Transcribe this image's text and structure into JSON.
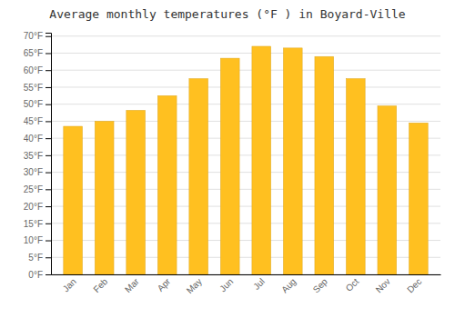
{
  "chart_data": {
    "type": "bar",
    "title": "Average monthly temperatures (°F ) in Boyard-Ville",
    "categories": [
      "Jan",
      "Feb",
      "Mar",
      "Apr",
      "May",
      "Jun",
      "Jul",
      "Aug",
      "Sep",
      "Oct",
      "Nov",
      "Dec"
    ],
    "values": [
      43.5,
      45.0,
      48.2,
      52.5,
      57.5,
      63.5,
      67.0,
      66.5,
      64.0,
      57.5,
      49.5,
      44.5
    ],
    "color": "#FFC020",
    "ylim": [
      0,
      71
    ],
    "yticks": [
      {
        "value": 0,
        "label": "0°F"
      },
      {
        "value": 5,
        "label": "5°F"
      },
      {
        "value": 10,
        "label": "10°F"
      },
      {
        "value": 15,
        "label": "15°F"
      },
      {
        "value": 20,
        "label": "20°F"
      },
      {
        "value": 25,
        "label": "25°F"
      },
      {
        "value": 30,
        "label": "30°F"
      },
      {
        "value": 35,
        "label": "35°F"
      },
      {
        "value": 40,
        "label": "40°F"
      },
      {
        "value": 45,
        "label": "45°F"
      },
      {
        "value": 50,
        "label": "50°F"
      },
      {
        "value": 55,
        "label": "55°F"
      },
      {
        "value": 60,
        "label": "60°F"
      },
      {
        "value": 65,
        "label": "65°F"
      },
      {
        "value": 70,
        "label": "70°F"
      }
    ],
    "grid": true
  }
}
